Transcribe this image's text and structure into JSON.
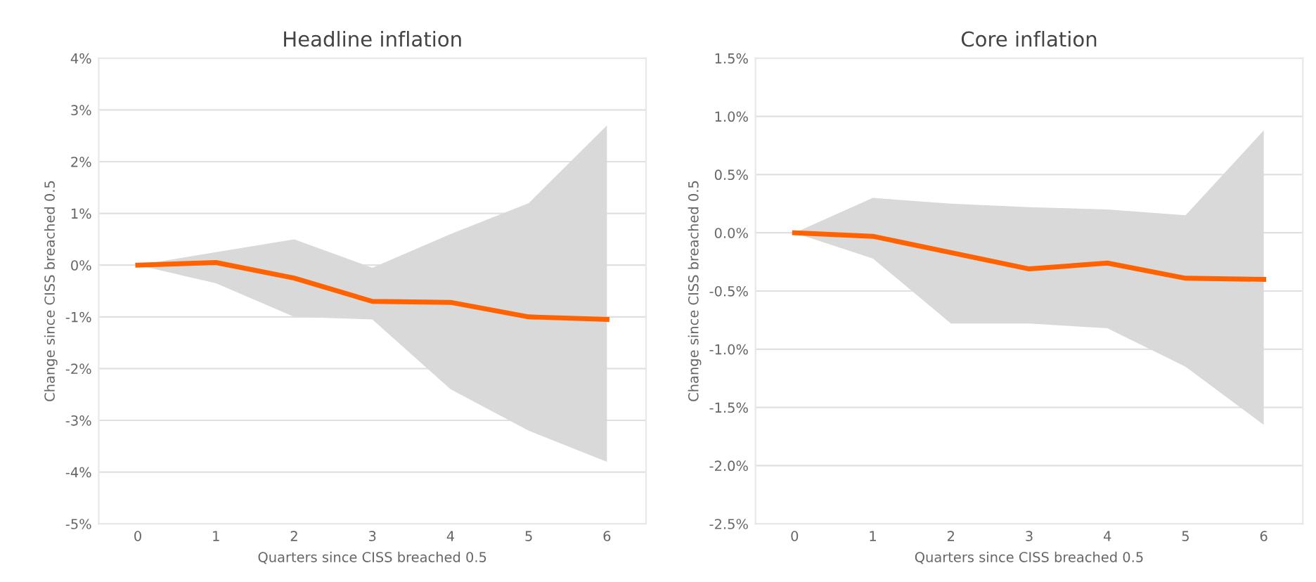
{
  "chart_data": [
    {
      "type": "line",
      "title": "Headline inflation",
      "xlabel": "Quarters since CISS breached 0.5",
      "ylabel": "Change since CISS breached 0.5",
      "categories": [
        "0",
        "1",
        "2",
        "3",
        "4",
        "5",
        "6"
      ],
      "series": [
        {
          "color": "#ff6200",
          "values": [
            0,
            0.05,
            -0.25,
            -0.7,
            -0.72,
            -1.0,
            -1.05
          ],
          "lower": [
            0,
            -0.35,
            -1.0,
            -1.05,
            -2.4,
            -3.2,
            -3.8
          ],
          "upper": [
            0,
            0.25,
            0.5,
            -0.05,
            0.6,
            1.2,
            2.7
          ]
        }
      ],
      "ylim": [
        -5,
        4
      ],
      "yticks": [
        {
          "value": -5,
          "label": "-5%"
        },
        {
          "value": -4,
          "label": "-4%"
        },
        {
          "value": -3,
          "label": "-3%"
        },
        {
          "value": -2,
          "label": "-2%"
        },
        {
          "value": -1,
          "label": "-1%"
        },
        {
          "value": 0,
          "label": "0%"
        },
        {
          "value": 1,
          "label": "1%"
        },
        {
          "value": 2,
          "label": "2%"
        },
        {
          "value": 3,
          "label": "3%"
        },
        {
          "value": 4,
          "label": "4%"
        }
      ],
      "grid": "y",
      "legend": false
    },
    {
      "type": "line",
      "title": "Core inflation",
      "xlabel": "Quarters since CISS breached 0.5",
      "ylabel": "Change since CISS breached 0.5",
      "categories": [
        "0",
        "1",
        "2",
        "3",
        "4",
        "5",
        "6"
      ],
      "series": [
        {
          "color": "#ff6200",
          "values": [
            0,
            -0.03,
            -0.17,
            -0.31,
            -0.26,
            -0.39,
            -0.4
          ],
          "lower": [
            0,
            -0.22,
            -0.78,
            -0.78,
            -0.82,
            -1.15,
            -1.65
          ],
          "upper": [
            0,
            0.3,
            0.25,
            0.22,
            0.2,
            0.15,
            0.88
          ]
        }
      ],
      "ylim": [
        -2.5,
        1.5
      ],
      "yticks": [
        {
          "value": -2.5,
          "label": "-2.5%"
        },
        {
          "value": -2,
          "label": "-2.0%"
        },
        {
          "value": -1.5,
          "label": "-1.5%"
        },
        {
          "value": -1,
          "label": "-1.0%"
        },
        {
          "value": -0.5,
          "label": "-0.5%"
        },
        {
          "value": 0,
          "label": "0.0%"
        },
        {
          "value": 0.5,
          "label": "0.5%"
        },
        {
          "value": 1,
          "label": "1.0%"
        },
        {
          "value": 1.5,
          "label": "1.5%"
        }
      ],
      "grid": "y",
      "legend": false
    }
  ]
}
